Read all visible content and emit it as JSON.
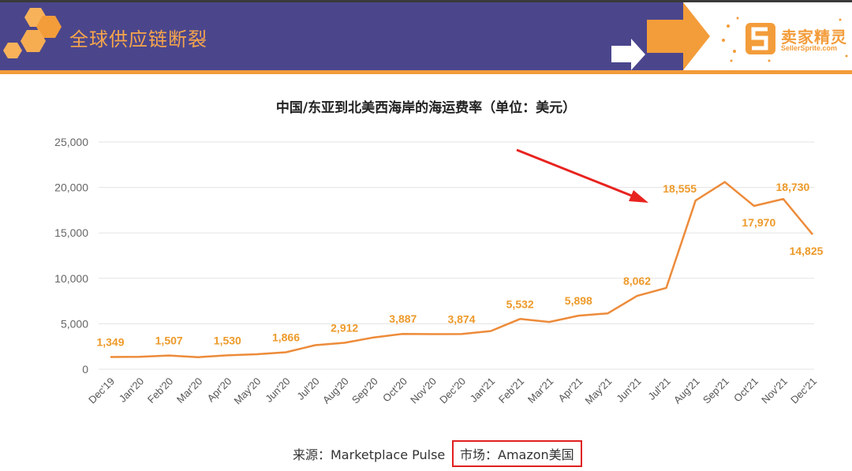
{
  "header": {
    "slide_title": "全球供应链断裂",
    "logo_text": "卖家精灵",
    "logo_sub": "SellerSprite.com"
  },
  "chart_data": {
    "type": "line",
    "title": "中国/东亚到北美西海岸的海运费率（单位：美元）",
    "categories": [
      "Dec'19",
      "Jan'20",
      "Feb'20",
      "Mar'20",
      "Apr'20",
      "May'20",
      "Jun'20",
      "Jul'20",
      "Aug'20",
      "Sep'20",
      "Oct'20",
      "Nov'20",
      "Dec'20",
      "Jan'21",
      "Feb'21",
      "Mar'21",
      "Apr'21",
      "May'21",
      "Jun'21",
      "Jul'21",
      "Aug'21",
      "Sep'21",
      "Oct'21",
      "Nov'21",
      "Dec'21"
    ],
    "series": [
      {
        "values": [
          1349,
          1370,
          1507,
          1330,
          1530,
          1650,
          1866,
          2650,
          2912,
          3500,
          3887,
          3860,
          3874,
          4200,
          5532,
          5200,
          5898,
          6150,
          8062,
          8950,
          18555,
          20600,
          17970,
          18730,
          14825
        ]
      }
    ],
    "data_labels": [
      {
        "index": 0,
        "text": "1,349"
      },
      {
        "index": 2,
        "text": "1,507"
      },
      {
        "index": 4,
        "text": "1,530"
      },
      {
        "index": 6,
        "text": "1,866"
      },
      {
        "index": 8,
        "text": "2,912"
      },
      {
        "index": 10,
        "text": "3,887"
      },
      {
        "index": 12,
        "text": "3,874"
      },
      {
        "index": 14,
        "text": "5,532"
      },
      {
        "index": 16,
        "text": "5,898"
      },
      {
        "index": 18,
        "text": "8,062"
      },
      {
        "index": 20,
        "text": "18,555"
      },
      {
        "index": 22,
        "text": "17,970"
      },
      {
        "index": 23,
        "text": "18,730"
      },
      {
        "index": 24,
        "text": "14,825"
      }
    ],
    "yticks": [
      "0",
      "5,000",
      "10,000",
      "15,000",
      "20,000",
      "25,000"
    ],
    "ylim": [
      0,
      25000
    ],
    "grid": true,
    "colors": {
      "line": "#ed8b3a",
      "label": "#ed9a2a",
      "arrow": "#e8231f",
      "grid": "#e3e3e3"
    }
  },
  "footer": {
    "source": "来源：Marketplace Pulse",
    "market": "市场：Amazon美国"
  }
}
